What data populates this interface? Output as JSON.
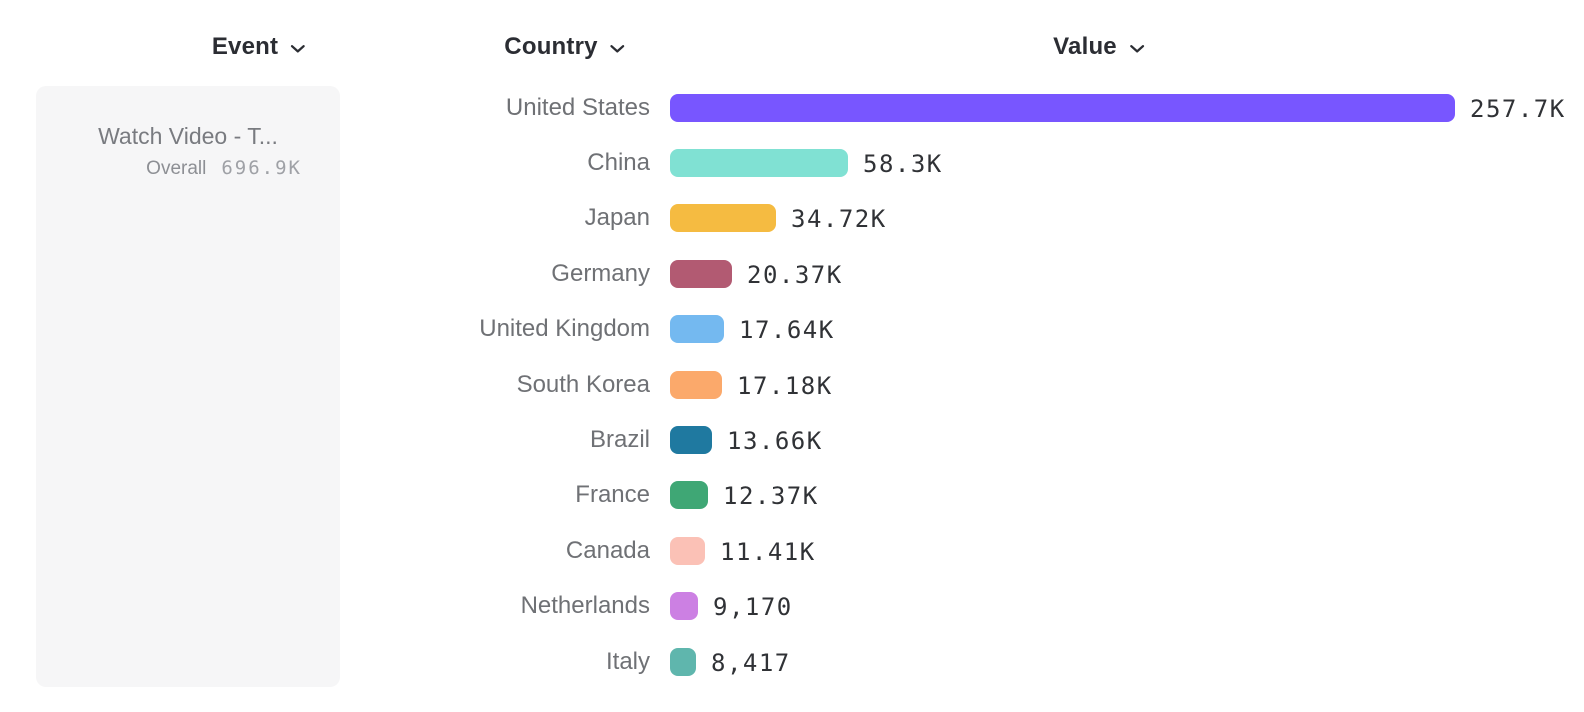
{
  "page": {
    "background": "#ffffff"
  },
  "columns": [
    {
      "id": "event",
      "label": "Event"
    },
    {
      "id": "country",
      "label": "Country"
    },
    {
      "id": "value",
      "label": "Value"
    }
  ],
  "event_panel": {
    "event_name": "Watch Video - T...",
    "overall_label": "Overall",
    "overall_value": "696.9K"
  },
  "chart_data": {
    "type": "bar",
    "orientation": "horizontal",
    "group_by": "Country",
    "metric": "Value",
    "title": "",
    "xlabel": "",
    "ylabel": "",
    "grid": false,
    "legend": false,
    "xlim": [
      0,
      257700
    ],
    "categories": [
      "United States",
      "China",
      "Japan",
      "Germany",
      "United Kingdom",
      "South Korea",
      "Brazil",
      "France",
      "Canada",
      "Netherlands",
      "Italy"
    ],
    "values": [
      257700,
      58300,
      34720,
      20370,
      17640,
      17180,
      13660,
      12370,
      11410,
      9170,
      8417
    ],
    "value_labels": [
      "257.7K",
      "58.3K",
      "34.72K",
      "20.37K",
      "17.64K",
      "17.18K",
      "13.66K",
      "12.37K",
      "11.41K",
      "9,170",
      "8,417"
    ],
    "colors": [
      "#7856ff",
      "#80e1d3",
      "#f5bb41",
      "#b25a72",
      "#74b9f0",
      "#fba96b",
      "#1f79a0",
      "#3fa775",
      "#fbc1b6",
      "#cc80e3",
      "#5fb6ad"
    ]
  }
}
